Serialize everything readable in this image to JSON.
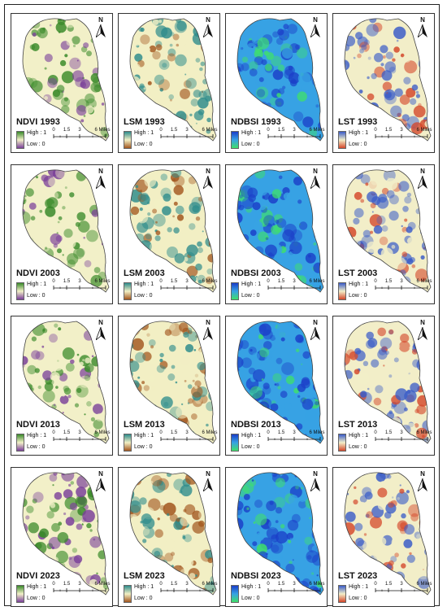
{
  "figure": {
    "rows": [
      {
        "year": "1993",
        "panels": [
          {
            "title": "NDVI 1993",
            "index": "NDVI"
          },
          {
            "title": "LSM 1993",
            "index": "LSM"
          },
          {
            "title": "NDBSI 1993",
            "index": "NDBSI"
          },
          {
            "title": "LST 1993",
            "index": "LST"
          }
        ]
      },
      {
        "year": "2003",
        "panels": [
          {
            "title": "NDVI 2003",
            "index": "NDVI"
          },
          {
            "title": "LSM 2003",
            "index": "LSM"
          },
          {
            "title": "NDBSI 2003",
            "index": "NDBSI"
          },
          {
            "title": "LST 2003",
            "index": "LST"
          }
        ]
      },
      {
        "year": "2013",
        "panels": [
          {
            "title": "NDVI 2013",
            "index": "NDVI"
          },
          {
            "title": "LSM 2013",
            "index": "LSM"
          },
          {
            "title": "NDBSI 2013",
            "index": "NDBSI"
          },
          {
            "title": "LST 2013",
            "index": "LST"
          }
        ]
      },
      {
        "year": "2023",
        "panels": [
          {
            "title": "NDVI 2023",
            "index": "NDVI"
          },
          {
            "title": "LSM 2023",
            "index": "LSM"
          },
          {
            "title": "NDBSI 2023",
            "index": "NDBSI"
          },
          {
            "title": "LST 2023",
            "index": "LST"
          }
        ]
      }
    ],
    "legend": {
      "high_label": "High : 1",
      "low_label": "Low : 0"
    },
    "scale_bar": {
      "ticks": [
        "0",
        "1.5",
        "3",
        "6 Miles"
      ]
    },
    "north_arrow": {
      "label": "N",
      "icon": "north-arrow-icon"
    },
    "palettes": {
      "NDVI": {
        "high": "#3a8a2a",
        "mid": "#f2f0c8",
        "low": "#7a3f9a"
      },
      "LSM": {
        "high": "#2e8c8c",
        "mid": "#f2efc4",
        "low": "#a2561e"
      },
      "NDBSI": {
        "high": "#1b3ec8",
        "mid": "#37a2e4",
        "low": "#3fe06a"
      },
      "LST": {
        "high": "#3a5cc8",
        "mid": "#f2eec8",
        "low": "#d4472a"
      }
    }
  }
}
